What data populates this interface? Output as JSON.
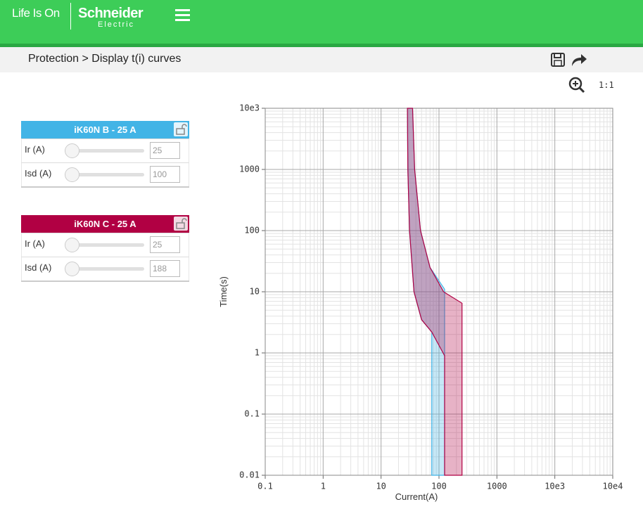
{
  "header": {
    "tagline": "Life Is On",
    "brand": "Schneider",
    "brand_sub": "Electric"
  },
  "breadcrumb": "Protection > Display t(i) curves",
  "zoom_reset": "1:1",
  "panels": [
    {
      "title": "iK60N B - 25 A",
      "color": "#42b4e6",
      "rows": [
        {
          "label": "Ir (A)",
          "value": 25
        },
        {
          "label": "Isd (A)",
          "value": 100
        }
      ]
    },
    {
      "title": "iK60N C - 25 A",
      "color": "#b10043",
      "rows": [
        {
          "label": "Ir (A)",
          "value": 25
        },
        {
          "label": "Isd (A)",
          "value": 188
        }
      ]
    }
  ],
  "chart_data": {
    "type": "area",
    "xlabel": "Current(A)",
    "ylabel": "Time(s)",
    "log_x": true,
    "log_y": true,
    "grid": true,
    "minor_grid": true,
    "xlim": [
      0.1,
      100000
    ],
    "ylim": [
      0.01,
      10000
    ],
    "xticks": [
      0.1,
      1,
      10,
      100,
      1000,
      {
        "value": 10000,
        "label": "10e3"
      },
      {
        "value": 100000,
        "label": "10e4"
      }
    ],
    "yticks": [
      0.01,
      0.1,
      1,
      10,
      100,
      1000,
      {
        "value": 10000,
        "label": "10e3"
      }
    ],
    "series": [
      {
        "color": "#42b4e6",
        "x": [
          35,
          38,
          48,
          70,
          125,
          125,
          75,
          75,
          50,
          37,
          31,
          29,
          28.5
        ],
        "values": [
          10000,
          1000,
          100,
          25,
          11,
          0.01,
          0.01,
          2.2,
          3.5,
          10,
          100,
          1000,
          10000
        ]
      },
      {
        "color": "#b10043",
        "x": [
          35,
          38,
          48,
          70,
          120,
          250,
          250,
          125,
          125,
          75,
          50,
          37,
          31,
          29,
          28.5
        ],
        "values": [
          10000,
          1000,
          100,
          25,
          10,
          6.5,
          0.01,
          0.01,
          0.9,
          2.2,
          3.5,
          10,
          100,
          1000,
          10000
        ]
      }
    ]
  }
}
